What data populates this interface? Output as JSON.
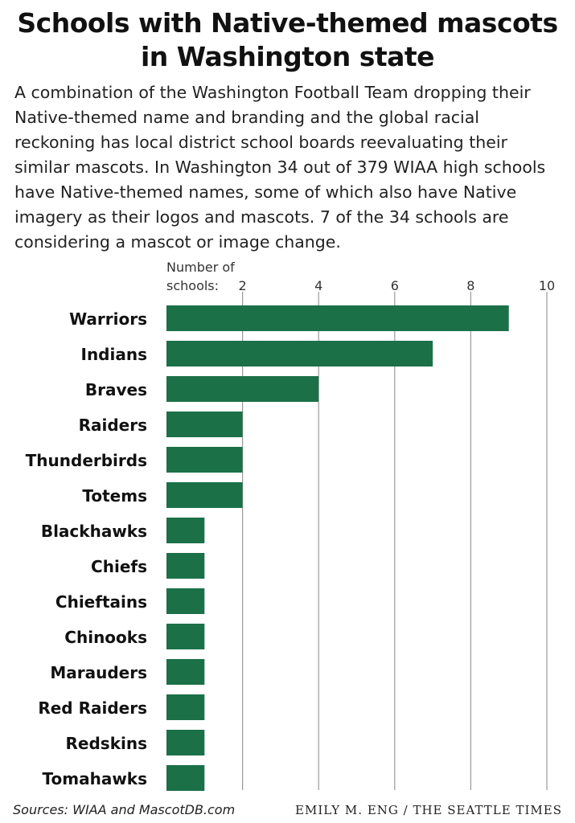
{
  "title_line1": "Schools with Native-themed mascots",
  "title_line2": "in Washington state",
  "intro": "A combination of the Washington Football Team dropping their Native-themed name and branding and the global racial reckoning has local district school boards reevaluating their similar mascots. In Washington 34 out of 379 WIAA high schools have Native-themed names, some of which also have Native imagery as their logos and mascots. 7 of the 34 schools are considering a mascot or image change.",
  "chart_data": {
    "type": "bar",
    "orientation": "horizontal",
    "axis_label_line1": "Number of",
    "axis_label_line2": "schools:",
    "xlim": [
      0,
      10
    ],
    "ticks": [
      2,
      4,
      6,
      8,
      10
    ],
    "grid": true,
    "categories": [
      "Warriors",
      "Indians",
      "Braves",
      "Raiders",
      "Thunderbirds",
      "Totems",
      "Blackhawks",
      "Chiefs",
      "Chieftains",
      "Chinooks",
      "Marauders",
      "Red Raiders",
      "Redskins",
      "Tomahawks"
    ],
    "values": [
      9,
      7,
      4,
      2,
      2,
      2,
      1,
      1,
      1,
      1,
      1,
      1,
      1,
      1
    ],
    "bar_color": "#1b7048",
    "grid_color": "#9a9a9a"
  },
  "footer": {
    "source": "Sources: WIAA and MascotDB.com",
    "credit": "EMILY M. ENG / THE SEATTLE TIMES"
  }
}
